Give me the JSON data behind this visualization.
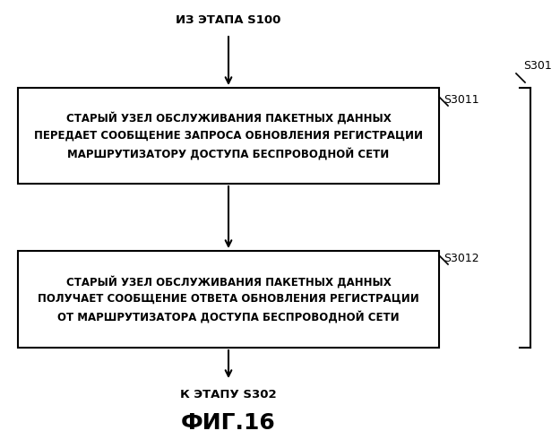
{
  "title": "ФИГ.16",
  "top_label": "ИЗ ЭТАПА S100",
  "bottom_label": "К ЭТАПУ S302",
  "step_label_1": "S3011",
  "step_label_2": "S3012",
  "bracket_label": "S301",
  "box1_lines": "СТАРЫЙ УЗЕЛ ОБСЛУЖИВАНИЯ ПАКЕТНЫХ ДАННЫХ\nПЕРЕДАЕТ СООБЩЕНИЕ ЗАПРОСА ОБНОВЛЕНИЯ РЕГИСТРАЦИИ\nМАРШРУТИЗАТОРУ ДОСТУПА БЕСПРОВОДНОЙ СЕТИ",
  "box2_lines": "СТАРЫЙ УЗЕЛ ОБСЛУЖИВАНИЯ ПАКЕТНЫХ ДАННЫХ\nПОЛУЧАЕТ СООБЩЕНИЕ ОТВЕТА ОБНОВЛЕНИЯ РЕГИСТРАЦИИ\nОТ МАРШРУТИЗАТОРА ДОСТУПА БЕСПРОВОДНОЙ СЕТИ",
  "bg_color": "#ffffff",
  "box_facecolor": "#ffffff",
  "box_edgecolor": "#000000",
  "text_color": "#000000",
  "arrow_color": "#000000",
  "font_size_box": 8.5,
  "font_size_label": 9.5,
  "font_size_title": 18,
  "font_size_step": 9.0,
  "fig_width": 6.25,
  "fig_height": 5.0,
  "dpi": 100
}
